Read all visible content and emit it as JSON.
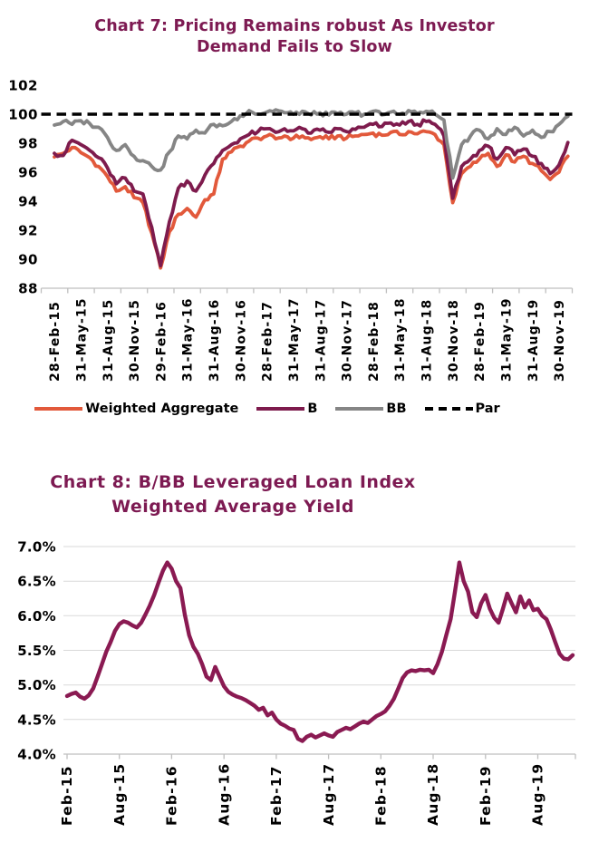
{
  "charts": [
    {
      "title_color": "#7D1A52"
    },
    {
      "title_color": "#7D1A52"
    }
  ],
  "chart_data": [
    {
      "type": "line",
      "title": "Chart 7: Pricing Remains robust As Investor Demand Fails to Slow",
      "title_lines": [
        "Chart 7: Pricing Remains robust As Investor",
        "Demand Fails to Slow"
      ],
      "ylim": [
        88,
        102
      ],
      "yticks": [
        88,
        90,
        92,
        94,
        96,
        98,
        100,
        102
      ],
      "ytick_labels": [
        "88",
        "90",
        "92",
        "94",
        "96",
        "98",
        "100",
        "102"
      ],
      "xtick_labels": [
        "28-Feb-15",
        "31-May-15",
        "31-Aug-15",
        "30-Nov-15",
        "29-Feb-16",
        "31-May-16",
        "31-Aug-16",
        "30-Nov-16",
        "28-Feb-17",
        "31-May-17",
        "31-Aug-17",
        "30-Nov-17",
        "28-Feb-18",
        "31-May-18",
        "31-Aug-18",
        "30-Nov-18",
        "28-Feb-19",
        "31-May-19",
        "31-Aug-19",
        "30-Nov-19"
      ],
      "months_per_xtick": 3,
      "x_step_months": 1,
      "show_gridlines": false,
      "axis_color": "#BFBFBF",
      "grid_color": "#D9D9D9",
      "legend_position": "bottom",
      "series": [
        {
          "name": "Weighted Aggregate",
          "color": "#E2593B",
          "width": 3.8,
          "wiggle": 0.18,
          "values": [
            97.05,
            97.3,
            97.7,
            97.35,
            97.0,
            96.4,
            95.7,
            94.7,
            95.0,
            94.25,
            93.9,
            91.8,
            89.4,
            91.9,
            93.1,
            93.5,
            92.9,
            94.1,
            94.5,
            96.9,
            97.4,
            97.8,
            98.15,
            98.35,
            98.5,
            98.3,
            98.5,
            98.35,
            98.5,
            98.25,
            98.45,
            98.3,
            98.5,
            98.35,
            98.5,
            98.6,
            98.7,
            98.55,
            98.75,
            98.6,
            98.8,
            98.65,
            98.8,
            98.6,
            97.9,
            93.9,
            95.9,
            96.4,
            96.9,
            97.3,
            96.4,
            97.2,
            96.7,
            97.1,
            96.6,
            96.1,
            95.5,
            96.0,
            97.1
          ]
        },
        {
          "name": "B",
          "color": "#7E1B4D",
          "width": 3.8,
          "wiggle": 0.18,
          "values": [
            97.3,
            97.15,
            98.2,
            97.9,
            97.5,
            97.0,
            96.3,
            95.2,
            95.6,
            94.7,
            94.5,
            92.2,
            89.55,
            92.6,
            94.9,
            95.4,
            94.7,
            95.8,
            96.6,
            97.5,
            97.9,
            98.3,
            98.6,
            98.8,
            99.0,
            98.75,
            99.0,
            98.85,
            99.0,
            98.7,
            98.9,
            98.75,
            99.0,
            98.8,
            98.95,
            99.1,
            99.3,
            99.15,
            99.4,
            99.25,
            99.5,
            99.3,
            99.5,
            99.3,
            98.5,
            94.2,
            96.4,
            96.9,
            97.5,
            97.8,
            96.9,
            97.7,
            97.2,
            97.6,
            97.1,
            96.6,
            95.9,
            96.5,
            98.05
          ]
        },
        {
          "name": "BB",
          "color": "#858585",
          "width": 3.8,
          "wiggle": 0.18,
          "values": [
            99.25,
            99.5,
            99.3,
            99.55,
            99.35,
            99.1,
            98.4,
            97.5,
            97.9,
            97.1,
            96.8,
            96.4,
            96.15,
            97.4,
            98.5,
            98.3,
            98.9,
            98.7,
            99.3,
            99.2,
            99.5,
            99.9,
            100.25,
            100.0,
            100.15,
            100.3,
            100.1,
            100.0,
            100.2,
            99.95,
            100.1,
            99.95,
            100.05,
            100.0,
            100.1,
            100.0,
            100.2,
            99.95,
            100.15,
            100.0,
            100.25,
            100.05,
            100.2,
            100.0,
            99.6,
            95.6,
            97.9,
            98.5,
            98.9,
            98.3,
            99.0,
            98.6,
            99.1,
            98.5,
            98.9,
            98.4,
            98.8,
            99.3,
            99.85
          ]
        },
        {
          "name": "Par",
          "color": "#000000",
          "width": 3.6,
          "style": "dashed",
          "constant": 100
        }
      ]
    },
    {
      "type": "line",
      "title": "Chart 8: B/BB Leveraged Loan Index Weighted Average Yield",
      "title_lines": [
        "Chart 8: B/BB Leveraged Loan Index",
        "Weighted Average Yield"
      ],
      "ylim": [
        4.0,
        7.0
      ],
      "yticks": [
        4.0,
        4.5,
        5.0,
        5.5,
        6.0,
        6.5,
        7.0
      ],
      "ytick_labels": [
        "4.0%",
        "4.5%",
        "5.0%",
        "5.5%",
        "6.0%",
        "6.5%",
        "7.0%"
      ],
      "xtick_labels": [
        "Feb-15",
        "Aug-15",
        "Feb-16",
        "Aug-16",
        "Feb-17",
        "Aug-17",
        "Feb-18",
        "Aug-18",
        "Feb-19",
        "Aug-19"
      ],
      "months_per_xtick": 6,
      "x_step_months": 0.5,
      "show_gridlines": true,
      "axis_color": "#BFBFBF",
      "grid_color": "#D9D9D9",
      "legend_position": "none",
      "series": [
        {
          "name": "B/BB Weighted Average Yield",
          "color": "#8A1A52",
          "width": 4.4,
          "values": [
            4.84,
            4.87,
            4.89,
            4.83,
            4.8,
            4.85,
            4.95,
            5.12,
            5.3,
            5.48,
            5.62,
            5.78,
            5.88,
            5.92,
            5.9,
            5.86,
            5.83,
            5.9,
            6.02,
            6.15,
            6.3,
            6.48,
            6.65,
            6.77,
            6.68,
            6.5,
            6.4,
            6.02,
            5.72,
            5.55,
            5.45,
            5.3,
            5.12,
            5.07,
            5.26,
            5.12,
            4.98,
            4.9,
            4.86,
            4.83,
            4.81,
            4.78,
            4.74,
            4.7,
            4.64,
            4.67,
            4.56,
            4.6,
            4.5,
            4.44,
            4.41,
            4.37,
            4.35,
            4.22,
            4.19,
            4.25,
            4.28,
            4.24,
            4.27,
            4.3,
            4.27,
            4.25,
            4.32,
            4.35,
            4.38,
            4.36,
            4.4,
            4.44,
            4.47,
            4.45,
            4.5,
            4.55,
            4.58,
            4.62,
            4.7,
            4.8,
            4.95,
            5.1,
            5.18,
            5.21,
            5.2,
            5.22,
            5.21,
            5.22,
            5.17,
            5.3,
            5.48,
            5.72,
            5.95,
            6.35,
            6.77,
            6.5,
            6.35,
            6.05,
            5.98,
            6.18,
            6.3,
            6.1,
            5.97,
            5.9,
            6.1,
            6.32,
            6.18,
            6.05,
            6.28,
            6.12,
            6.22,
            6.08,
            6.1,
            6.0,
            5.95,
            5.8,
            5.62,
            5.45,
            5.38,
            5.37,
            5.43
          ]
        }
      ]
    }
  ]
}
